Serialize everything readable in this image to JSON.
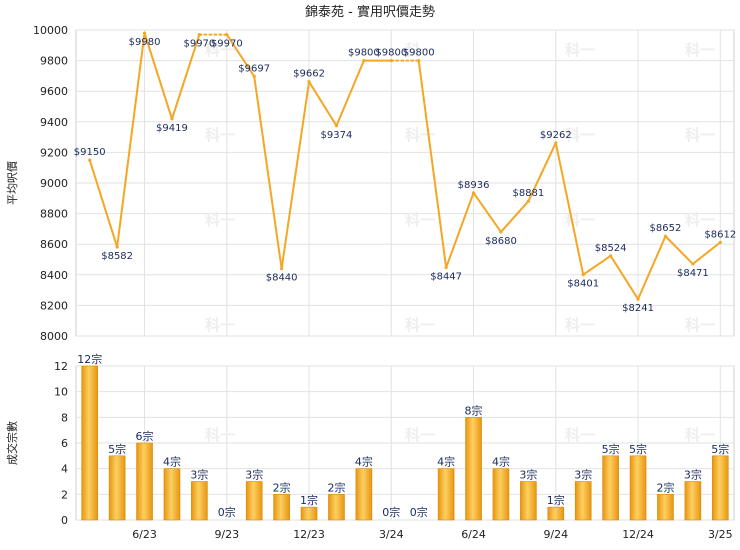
{
  "chart_data": [
    {
      "type": "line",
      "title": "錦泰苑 - 實用呎價走勢",
      "ylabel": "平均呎價",
      "ylim": [
        8000,
        10000
      ],
      "y_ticks": [
        "8000",
        "8200",
        "8400",
        "8600",
        "8800",
        "9000",
        "9200",
        "9400",
        "9600",
        "9800",
        "10000"
      ],
      "x_ticks": [
        {
          "index": 2,
          "label": "6/23"
        },
        {
          "index": 5,
          "label": "9/23"
        },
        {
          "index": 8,
          "label": "12/23"
        },
        {
          "index": 11,
          "label": "3/24"
        },
        {
          "index": 14,
          "label": "6/24"
        },
        {
          "index": 17,
          "label": "9/24"
        },
        {
          "index": 20,
          "label": "12/24"
        },
        {
          "index": 23,
          "label": "3/25"
        }
      ],
      "values": [
        9150,
        8582,
        9980,
        9419,
        9970,
        9970,
        9697,
        8440,
        9662,
        9374,
        9800,
        9800,
        9800,
        8447,
        8936,
        8680,
        8881,
        9262,
        8401,
        8524,
        8241,
        8652,
        8471,
        8612
      ],
      "labels": [
        "$9150",
        "$8582",
        "$9980",
        "$9419",
        "$9970",
        "$9970",
        "$9697",
        "$8440",
        "$9662",
        "$9374",
        "$9800",
        "$9800",
        "$9800",
        "$8447",
        "$8936",
        "$8680",
        "$8881",
        "$9262",
        "$8401",
        "$8524",
        "$8241",
        "$8652",
        "$8471",
        "$8612"
      ],
      "dotted_segments": [
        4,
        11
      ],
      "line_color": "#f5a623",
      "grid": true
    },
    {
      "type": "bar",
      "ylabel": "成交宗數",
      "ylim": [
        0,
        12
      ],
      "y_ticks": [
        "0",
        "2",
        "4",
        "6",
        "8",
        "10",
        "12"
      ],
      "values": [
        12,
        5,
        6,
        4,
        3,
        0,
        3,
        2,
        1,
        2,
        4,
        0,
        0,
        4,
        8,
        4,
        3,
        1,
        3,
        5,
        5,
        2,
        3,
        5
      ],
      "labels": [
        "12宗",
        "5宗",
        "6宗",
        "4宗",
        "3宗",
        "0宗",
        "3宗",
        "2宗",
        "1宗",
        "2宗",
        "4宗",
        "0宗",
        "0宗",
        "4宗",
        "8宗",
        "4宗",
        "3宗",
        "1宗",
        "3宗",
        "5宗",
        "5宗",
        "2宗",
        "3宗",
        "5宗"
      ],
      "bar_color": "#f2a71b",
      "grid": true
    }
  ],
  "watermark": "科一"
}
